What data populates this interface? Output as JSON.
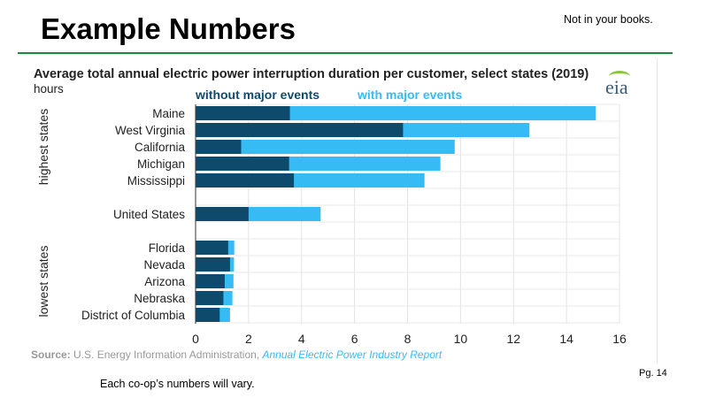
{
  "slide": {
    "title": "Example Numbers",
    "note": "Not in your books.",
    "page": "Pg. 14",
    "footer": "Each co-op’s numbers will vary.",
    "accent_line_color": "#1a8a3c"
  },
  "chart_data": {
    "type": "bar",
    "orientation": "horizontal",
    "stacking": "overlay",
    "title": "Average total annual electric power interruption duration per customer, select states (2019)",
    "unit": "hours",
    "logo": "eia",
    "groups": [
      {
        "label": "highest states",
        "categories": [
          "Maine",
          "West Virginia",
          "California",
          "Michigan",
          "Mississippi"
        ]
      },
      {
        "label": "",
        "categories": [
          "United States"
        ]
      },
      {
        "label": "lowest states",
        "categories": [
          "Florida",
          "Nevada",
          "Arizona",
          "Nebraska",
          "District of Columbia"
        ]
      }
    ],
    "categories": [
      "Maine",
      "West Virginia",
      "California",
      "Michigan",
      "Mississippi",
      "United States",
      "Florida",
      "Nevada",
      "Arizona",
      "Nebraska",
      "District of Columbia"
    ],
    "series": [
      {
        "name": "without major events",
        "color": "#0e4a6b",
        "values": [
          3.56,
          7.83,
          1.72,
          3.53,
          3.71,
          2.0,
          1.23,
          1.3,
          1.1,
          1.05,
          0.91
        ]
      },
      {
        "name": "with major events",
        "color": "#36bbf5",
        "values": [
          15.1,
          12.6,
          9.78,
          9.24,
          8.64,
          4.72,
          1.46,
          1.45,
          1.43,
          1.39,
          1.3
        ]
      }
    ],
    "xlim": [
      0,
      16
    ],
    "xticks": [
      "0",
      "2",
      "4",
      "6",
      "8",
      "10",
      "12",
      "14",
      "16"
    ],
    "grid": true,
    "legend": "top",
    "source_label": "Source:",
    "source_text": "U.S. Energy Information Administration,",
    "source_link": "Annual Electric Power Industry Report"
  }
}
